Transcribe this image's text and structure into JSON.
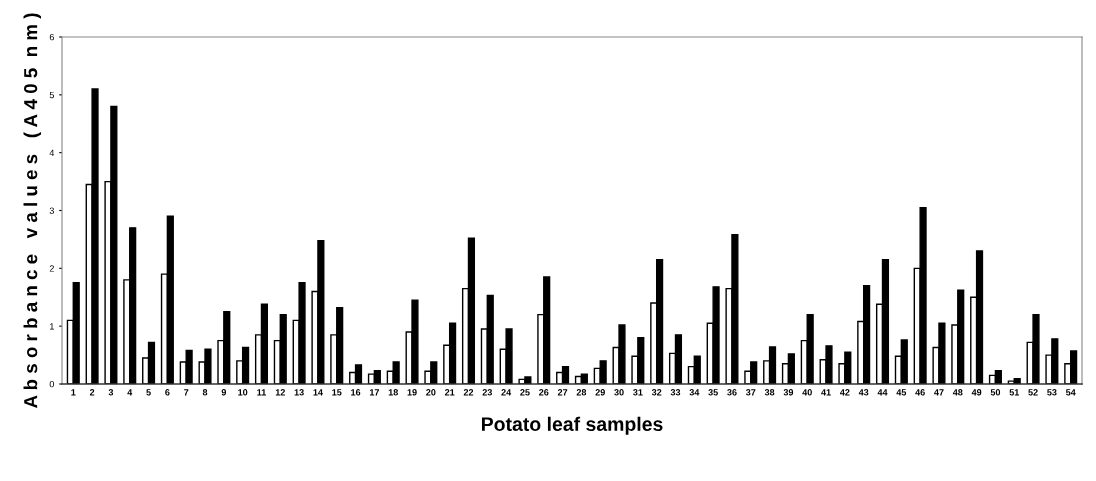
{
  "chart_data": {
    "type": "bar",
    "xlabel": "Potato leaf samples",
    "ylabel": "A b s o r b a n c e   v a l u e s   ( A 4 0 5  n m )",
    "categories": [
      "1",
      "2",
      "3",
      "4",
      "5",
      "6",
      "7",
      "8",
      "9",
      "10",
      "11",
      "12",
      "13",
      "14",
      "15",
      "16",
      "17",
      "18",
      "19",
      "20",
      "21",
      "22",
      "23",
      "24",
      "25",
      "26",
      "27",
      "28",
      "29",
      "30",
      "31",
      "32",
      "33",
      "34",
      "35",
      "36",
      "37",
      "38",
      "39",
      "40",
      "41",
      "42",
      "43",
      "44",
      "45",
      "46",
      "47",
      "48",
      "49",
      "50",
      "51",
      "52",
      "53",
      "54"
    ],
    "series": [
      {
        "color": "#ffffff",
        "values": [
          1.1,
          3.45,
          3.5,
          1.8,
          0.45,
          1.9,
          0.38,
          0.38,
          0.75,
          0.4,
          0.85,
          0.75,
          1.1,
          1.6,
          0.85,
          0.2,
          0.17,
          0.22,
          0.9,
          0.22,
          0.67,
          1.65,
          0.95,
          0.6,
          0.08,
          1.2,
          0.2,
          0.13,
          0.27,
          0.63,
          0.48,
          1.4,
          0.53,
          0.3,
          1.05,
          1.65,
          0.22,
          0.4,
          0.35,
          0.75,
          0.42,
          0.35,
          1.08,
          1.38,
          0.48,
          2.0,
          0.63,
          1.02,
          1.5,
          0.15,
          0.05,
          0.72,
          0.5,
          0.35
        ]
      },
      {
        "color": "#000000",
        "values": [
          1.75,
          5.1,
          4.8,
          2.7,
          0.72,
          2.9,
          0.58,
          0.6,
          1.25,
          0.63,
          1.38,
          1.2,
          1.75,
          2.48,
          1.32,
          0.33,
          0.23,
          0.38,
          1.45,
          0.38,
          1.05,
          2.52,
          1.53,
          0.95,
          0.12,
          1.85,
          0.3,
          0.17,
          0.4,
          1.02,
          0.8,
          2.15,
          0.85,
          0.48,
          1.68,
          2.58,
          0.38,
          0.64,
          0.52,
          1.2,
          0.66,
          0.55,
          1.7,
          2.15,
          0.76,
          3.05,
          1.05,
          1.62,
          2.3,
          0.23,
          0.09,
          1.2,
          0.78,
          0.57
        ]
      }
    ],
    "ylim": [
      0,
      6
    ],
    "yticks": [
      0,
      1,
      2,
      3,
      4,
      5,
      6
    ],
    "grid": false,
    "legend": false
  }
}
